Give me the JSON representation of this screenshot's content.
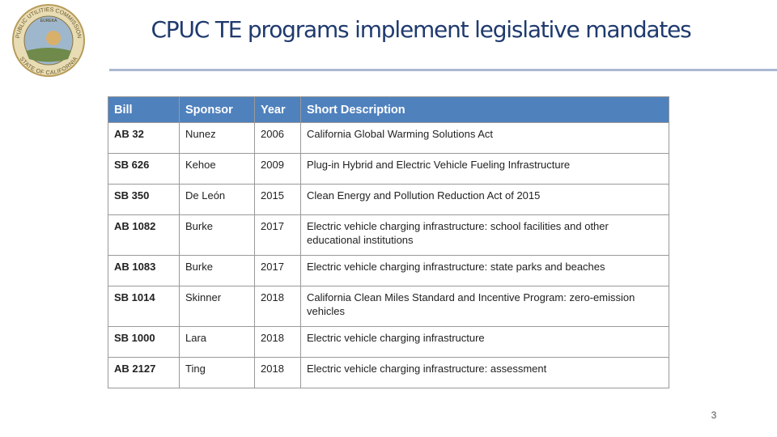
{
  "header": {
    "title": "CPUC TE programs implement legislative mandates"
  },
  "seal": {
    "text_top": "PUBLIC UTILITIES COMMISSION",
    "text_bottom": "STATE OF CALIFORNIA",
    "motto": "EUREKA"
  },
  "table": {
    "columns": [
      "Bill",
      "Sponsor",
      "Year",
      "Short Description"
    ],
    "rows": [
      [
        "AB 32",
        "Nunez",
        2006,
        "California Global Warming Solutions Act"
      ],
      [
        "SB 626",
        "Kehoe",
        2009,
        "Plug-in Hybrid and Electric Vehicle Fueling Infrastructure"
      ],
      [
        "SB 350",
        "De León",
        2015,
        "Clean Energy and Pollution Reduction Act of 2015"
      ],
      [
        "AB 1082",
        "Burke",
        2017,
        "Electric vehicle charging infrastructure: school facilities and other educational institutions"
      ],
      [
        "AB 1083",
        "Burke",
        2017,
        "Electric vehicle charging infrastructure: state parks and beaches"
      ],
      [
        "SB 1014",
        "Skinner",
        2018,
        "California Clean Miles Standard and Incentive Program: zero-emission vehicles"
      ],
      [
        "SB 1000",
        "Lara",
        2018,
        "Electric vehicle charging infrastructure"
      ],
      [
        "AB 2127",
        "Ting",
        2018,
        "Electric vehicle charging infrastructure: assessment"
      ]
    ]
  },
  "footer": {
    "page_number": 3
  }
}
